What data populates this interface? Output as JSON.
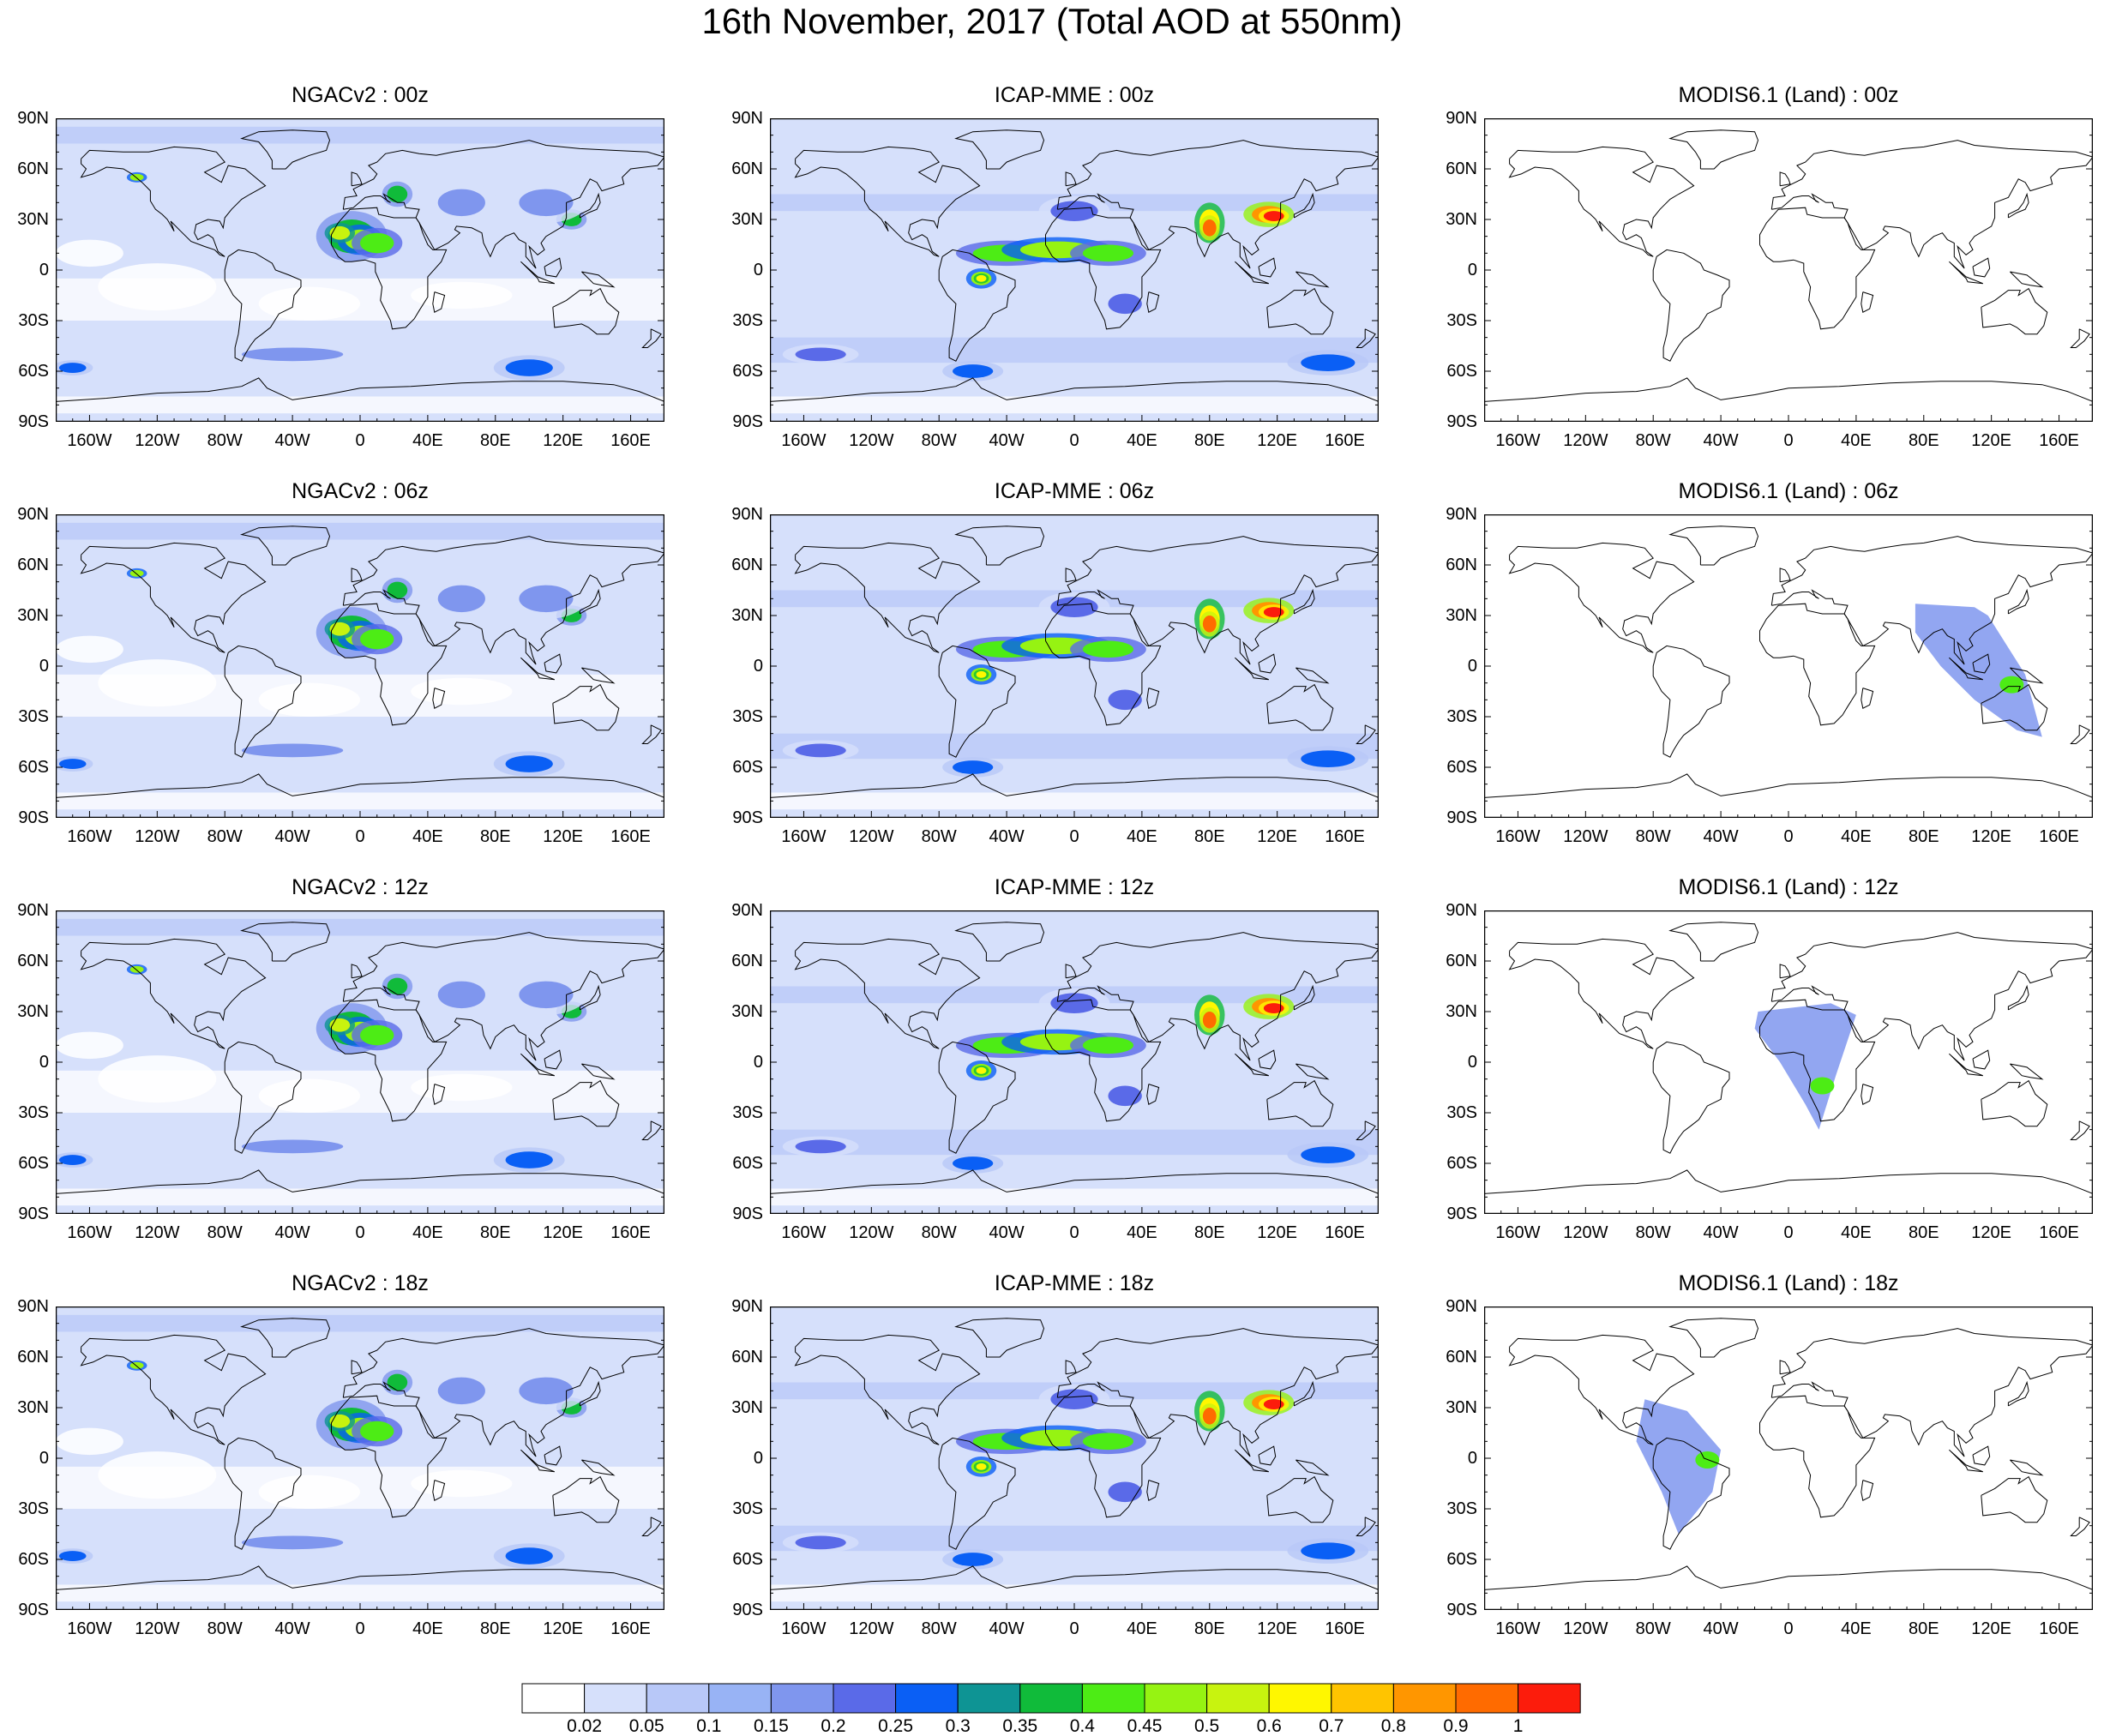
{
  "title": "16th November, 2017 (Total AOD at 550nm)",
  "panels": [
    {
      "title": "NGACv2 : 00z",
      "model": "ngac",
      "hour": "00z"
    },
    {
      "title": "ICAP-MME : 00z",
      "model": "icap",
      "hour": "00z"
    },
    {
      "title": "MODIS6.1 (Land) : 00z",
      "model": "modis",
      "hour": "00z"
    },
    {
      "title": "NGACv2 : 06z",
      "model": "ngac",
      "hour": "06z"
    },
    {
      "title": "ICAP-MME : 06z",
      "model": "icap",
      "hour": "06z"
    },
    {
      "title": "MODIS6.1 (Land) : 06z",
      "model": "modis",
      "hour": "06z"
    },
    {
      "title": "NGACv2 : 12z",
      "model": "ngac",
      "hour": "12z"
    },
    {
      "title": "ICAP-MME : 12z",
      "model": "icap",
      "hour": "12z"
    },
    {
      "title": "MODIS6.1 (Land) : 12z",
      "model": "modis",
      "hour": "12z"
    },
    {
      "title": "NGACv2 : 18z",
      "model": "ngac",
      "hour": "18z"
    },
    {
      "title": "ICAP-MME : 18z",
      "model": "icap",
      "hour": "18z"
    },
    {
      "title": "MODIS6.1 (Land) : 18z",
      "model": "modis",
      "hour": "18z"
    }
  ],
  "lat_labels": [
    "90N",
    "60N",
    "30N",
    "0",
    "30S",
    "60S",
    "90S"
  ],
  "lat_values": [
    90,
    60,
    30,
    0,
    -30,
    -60,
    -90
  ],
  "lon_labels": [
    "160W",
    "120W",
    "80W",
    "40W",
    "0",
    "40E",
    "80E",
    "120E",
    "160E"
  ],
  "lon_values": [
    -160,
    -120,
    -80,
    -40,
    0,
    40,
    80,
    120,
    160
  ],
  "colorbar": {
    "labels": [
      "0.02",
      "0.05",
      "0.1",
      "0.15",
      "0.2",
      "0.25",
      "0.3",
      "0.35",
      "0.4",
      "0.45",
      "0.5",
      "0.6",
      "0.7",
      "0.8",
      "0.9",
      "1"
    ],
    "colors": [
      "#ffffff",
      "#d6e0fb",
      "#b8c8f8",
      "#98b3f5",
      "#7f96ee",
      "#5a6ae8",
      "#0a5ff5",
      "#0e9494",
      "#10bb3a",
      "#4dec15",
      "#96f312",
      "#c8f30f",
      "#fff700",
      "#ffc400",
      "#ff9600",
      "#ff6b00",
      "#fc1c0c"
    ]
  },
  "palette": {
    "ocean_background": "#d6e0fb",
    "clean_air": "#ffffff",
    "coastline": "#000000"
  }
}
